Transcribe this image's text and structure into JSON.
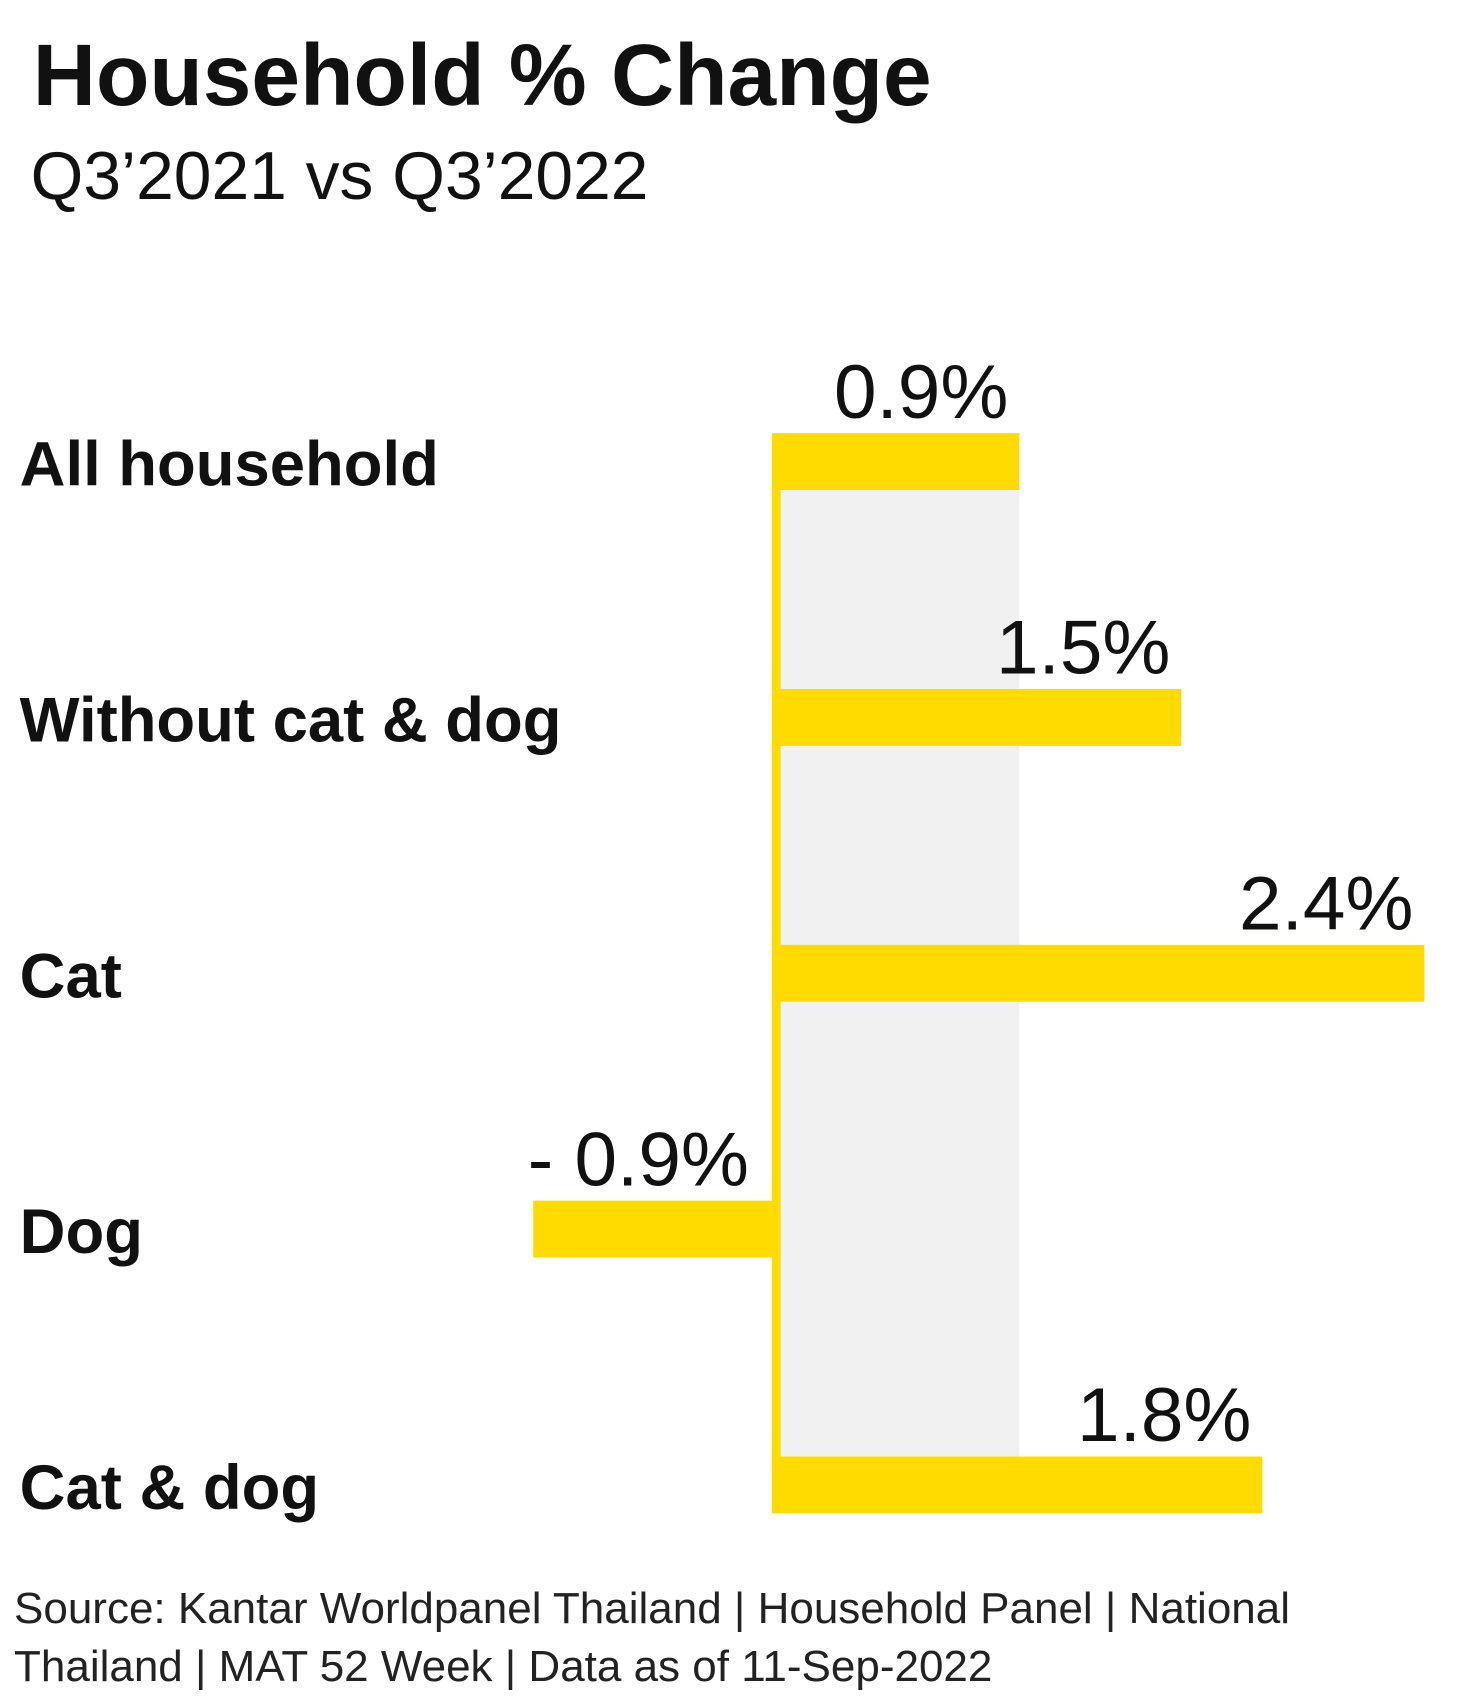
{
  "chart_data": {
    "type": "bar",
    "orientation": "horizontal",
    "title": "Household % Change",
    "subtitle": "Q3’2021 vs Q3’2022",
    "categories": [
      "All household",
      "Without cat & dog",
      "Cat",
      "Dog",
      "Cat & dog"
    ],
    "values": [
      0.9,
      1.5,
      2.4,
      -0.9,
      1.8
    ],
    "value_labels": [
      "0.9%",
      "1.5%",
      "2.4%",
      "- 0.9%",
      "1.8%"
    ],
    "color": "#ffdb00",
    "source": "Source: Kantar Worldpanel Thailand | Household Panel | National Thailand | MAT 52 Week | Data as of 11-Sep-2022"
  }
}
